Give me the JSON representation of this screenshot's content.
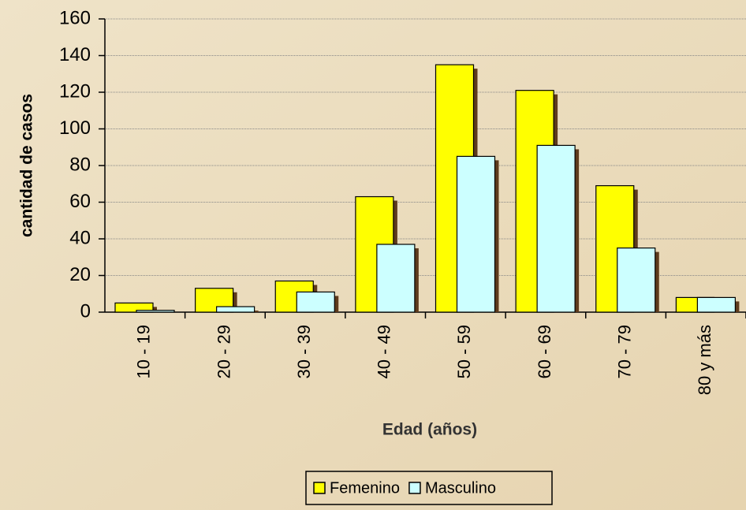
{
  "chart_data": {
    "type": "bar",
    "x_label": "Edad (años)",
    "y_label": "cantidad de casos",
    "categories": [
      "10 - 19",
      "20 - 29",
      "30 - 39",
      "40 - 49",
      "50 - 59",
      "60 - 69",
      "70 - 79",
      "80 y más"
    ],
    "series": [
      {
        "name": "Femenino",
        "color": "#ffff00",
        "values": [
          5,
          13,
          17,
          63,
          135,
          121,
          69,
          8
        ]
      },
      {
        "name": "Masculino",
        "color": "#ccffff",
        "values": [
          1,
          3,
          11,
          37,
          85,
          91,
          35,
          8
        ]
      }
    ],
    "ylim": [
      0,
      160
    ],
    "yticks": [
      0,
      20,
      40,
      60,
      80,
      100,
      120,
      140,
      160
    ],
    "grid": true,
    "legend": "bottom"
  }
}
